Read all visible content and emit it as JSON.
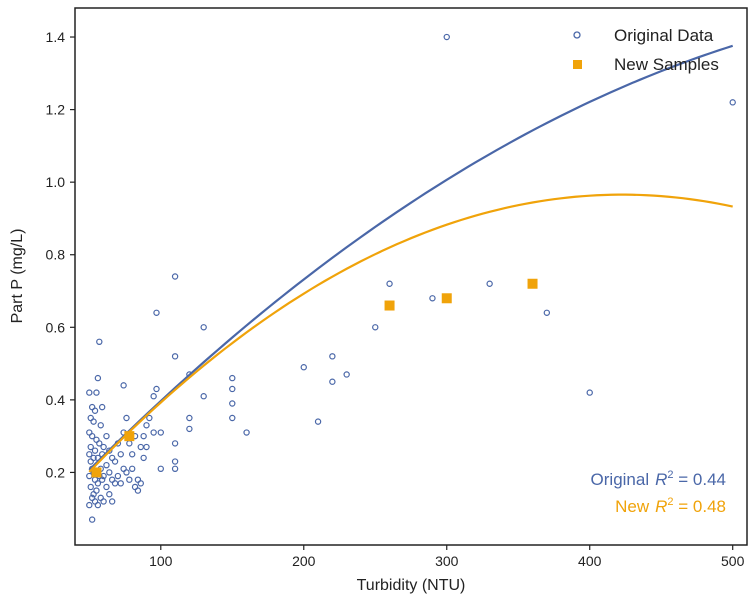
{
  "chart_data": {
    "type": "scatter",
    "xlabel": "Turbidity (NTU)",
    "ylabel": "Part P (mg/L)",
    "xlim": [
      40,
      510
    ],
    "ylim": [
      0.0,
      1.48
    ],
    "xticks": [
      100,
      200,
      300,
      400,
      500
    ],
    "yticks": [
      0.2,
      0.4,
      0.6,
      0.8,
      1.0,
      1.2,
      1.4
    ],
    "xtick_labels": [
      "100",
      "200",
      "300",
      "400",
      "500"
    ],
    "ytick_labels": [
      "0.2",
      "0.4",
      "0.6",
      "0.8",
      "1.0",
      "1.2",
      "1.4"
    ],
    "grid": false,
    "legend_position": "top-right",
    "colors": {
      "original": "#4a67a8",
      "new": "#f0a30a"
    },
    "series": [
      {
        "name": "Original Data",
        "marker": "open-circle",
        "points": [
          [
            50,
            0.11
          ],
          [
            50,
            0.19
          ],
          [
            50,
            0.25
          ],
          [
            50,
            0.31
          ],
          [
            50,
            0.42
          ],
          [
            51,
            0.16
          ],
          [
            51,
            0.23
          ],
          [
            51,
            0.27
          ],
          [
            51,
            0.35
          ],
          [
            52,
            0.07
          ],
          [
            52,
            0.13
          ],
          [
            52,
            0.21
          ],
          [
            52,
            0.3
          ],
          [
            52,
            0.38
          ],
          [
            53,
            0.14
          ],
          [
            53,
            0.2
          ],
          [
            53,
            0.24
          ],
          [
            53,
            0.34
          ],
          [
            54,
            0.12
          ],
          [
            54,
            0.18
          ],
          [
            54,
            0.26
          ],
          [
            54,
            0.37
          ],
          [
            55,
            0.15
          ],
          [
            55,
            0.2
          ],
          [
            55,
            0.29
          ],
          [
            55,
            0.42
          ],
          [
            56,
            0.11
          ],
          [
            56,
            0.17
          ],
          [
            56,
            0.24
          ],
          [
            56,
            0.46
          ],
          [
            57,
            0.19
          ],
          [
            57,
            0.28
          ],
          [
            57,
            0.56
          ],
          [
            58,
            0.13
          ],
          [
            58,
            0.21
          ],
          [
            58,
            0.33
          ],
          [
            59,
            0.18
          ],
          [
            59,
            0.25
          ],
          [
            59,
            0.38
          ],
          [
            60,
            0.12
          ],
          [
            60,
            0.19
          ],
          [
            60,
            0.27
          ],
          [
            62,
            0.16
          ],
          [
            62,
            0.22
          ],
          [
            62,
            0.3
          ],
          [
            64,
            0.14
          ],
          [
            64,
            0.2
          ],
          [
            64,
            0.26
          ],
          [
            66,
            0.12
          ],
          [
            66,
            0.18
          ],
          [
            66,
            0.24
          ],
          [
            68,
            0.17
          ],
          [
            68,
            0.23
          ],
          [
            70,
            0.19
          ],
          [
            70,
            0.28
          ],
          [
            72,
            0.17
          ],
          [
            72,
            0.25
          ],
          [
            74,
            0.21
          ],
          [
            74,
            0.31
          ],
          [
            74,
            0.44
          ],
          [
            76,
            0.2
          ],
          [
            76,
            0.35
          ],
          [
            78,
            0.18
          ],
          [
            78,
            0.28
          ],
          [
            80,
            0.21
          ],
          [
            80,
            0.25
          ],
          [
            82,
            0.16
          ],
          [
            82,
            0.3
          ],
          [
            84,
            0.18
          ],
          [
            84,
            0.15
          ],
          [
            86,
            0.17
          ],
          [
            86,
            0.27
          ],
          [
            88,
            0.24
          ],
          [
            88,
            0.3
          ],
          [
            90,
            0.27
          ],
          [
            90,
            0.33
          ],
          [
            92,
            0.35
          ],
          [
            95,
            0.31
          ],
          [
            95,
            0.41
          ],
          [
            97,
            0.43
          ],
          [
            97,
            0.64
          ],
          [
            100,
            0.21
          ],
          [
            100,
            0.31
          ],
          [
            110,
            0.21
          ],
          [
            110,
            0.23
          ],
          [
            110,
            0.28
          ],
          [
            110,
            0.52
          ],
          [
            110,
            0.74
          ],
          [
            120,
            0.32
          ],
          [
            120,
            0.35
          ],
          [
            120,
            0.47
          ],
          [
            130,
            0.41
          ],
          [
            130,
            0.6
          ],
          [
            150,
            0.35
          ],
          [
            150,
            0.39
          ],
          [
            150,
            0.43
          ],
          [
            150,
            0.46
          ],
          [
            160,
            0.31
          ],
          [
            200,
            0.49
          ],
          [
            210,
            0.34
          ],
          [
            220,
            0.45
          ],
          [
            220,
            0.52
          ],
          [
            230,
            0.47
          ],
          [
            250,
            0.6
          ],
          [
            260,
            0.72
          ],
          [
            290,
            0.68
          ],
          [
            300,
            1.4
          ],
          [
            330,
            0.72
          ],
          [
            370,
            0.64
          ],
          [
            400,
            0.42
          ],
          [
            500,
            1.22
          ]
        ]
      },
      {
        "name": "New Samples",
        "marker": "filled-square",
        "points": [
          [
            55,
            0.2
          ],
          [
            78,
            0.3
          ],
          [
            260,
            0.66
          ],
          [
            300,
            0.68
          ],
          [
            360,
            0.72
          ]
        ]
      }
    ],
    "fit_lines": [
      {
        "series": "Original Data",
        "formula": "0.2069 + 0.00000395*(x-50) - 0.0000000167*(x-50)^2",
        "x_range": [
          50,
          500
        ]
      },
      {
        "series": "New Samples",
        "formula": "0.2015 + 0.0041*(x-50) - 0.0000055*(x-50)^2",
        "x_range": [
          50,
          500
        ]
      }
    ],
    "annotations": [
      {
        "label": "Original",
        "r2": "0.44"
      },
      {
        "label": "New",
        "r2": "0.48"
      }
    ]
  }
}
